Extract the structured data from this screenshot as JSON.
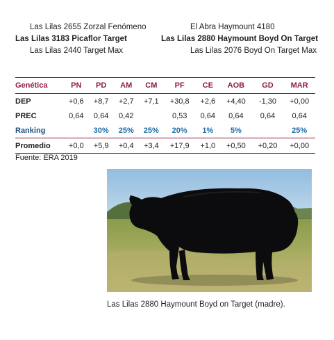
{
  "pedigree": {
    "rows": [
      {
        "left": "Las Lilas 2655 Zorzal Fenómeno",
        "right": "El Abra Haymount 4180"
      },
      {
        "left": "Las Lilas 3183 Picaflor Target",
        "right": "Las Lilas 2880 Haymount Boyd On Target"
      },
      {
        "left": "Las Lilas 2440 Target Max",
        "right": "Las Lilas 2076 Boyd On Target Max"
      }
    ]
  },
  "table": {
    "header": [
      "Genética",
      "PN",
      "PD",
      "AM",
      "CM",
      "PF",
      "CE",
      "AOB",
      "GD",
      "MAR"
    ],
    "rows": [
      {
        "label": "DEP",
        "cells": [
          "+0,6",
          "+8,7",
          "+2,7",
          "+7,1",
          "+30,8",
          "+2,6",
          "+4,40",
          "-1,30",
          "+0,00"
        ]
      },
      {
        "label": "PREC",
        "cells": [
          "0,64",
          "0,64",
          "0,42",
          "",
          "0,53",
          "0,64",
          "0,64",
          "0,64",
          "0,64"
        ]
      },
      {
        "label": "Ranking",
        "cells": [
          "",
          "30%",
          "25%",
          "25%",
          "20%",
          "1%",
          "5%",
          "",
          "25%"
        ]
      },
      {
        "label": "Promedio",
        "cells": [
          "+0,0",
          "+5,9",
          "+0,4",
          "+3,4",
          "+17,9",
          "+1,0",
          "+0,50",
          "+0,20",
          "+0,00"
        ]
      }
    ]
  },
  "source": "Fuente: ERA 2019",
  "caption": "Las Lilas 2880 Haymount Boyd on Target (madre).",
  "colors": {
    "accent": "#8e1b3a",
    "ranking": "#1f6ea8"
  }
}
